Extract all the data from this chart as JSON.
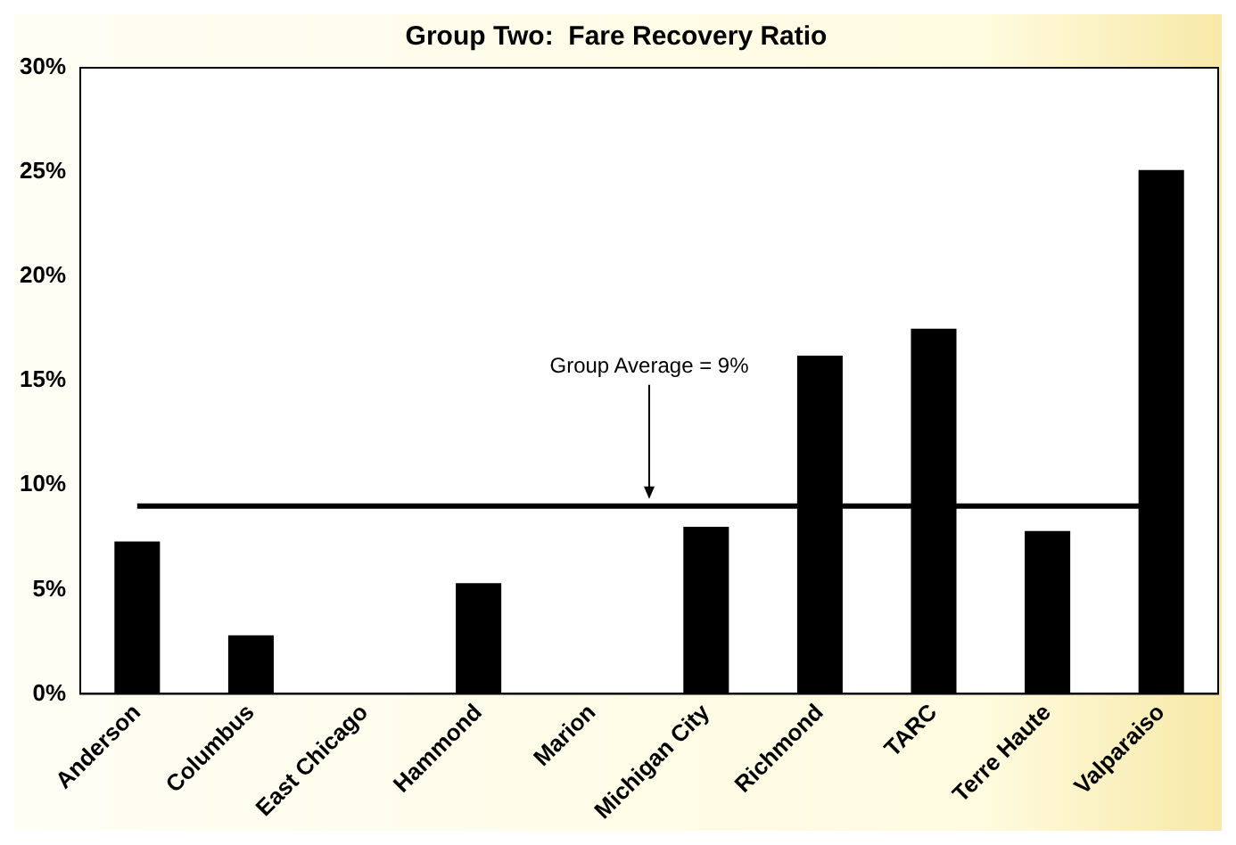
{
  "chart_data": {
    "type": "bar",
    "title": "Group Two:  Fare Recovery Ratio",
    "categories": [
      "Anderson",
      "Columbus",
      "East Chicago",
      "Hammond",
      "Marion",
      "Michigan City",
      "Richmond",
      "TARC",
      "Terre Haute",
      "Valparaiso"
    ],
    "values": [
      7.3,
      2.8,
      0,
      5.3,
      0,
      8.0,
      16.2,
      17.5,
      7.8,
      25.1
    ],
    "color": "#000000",
    "ylim": [
      0,
      30
    ],
    "yticks": [
      {
        "value": 0,
        "label": "0%"
      },
      {
        "value": 5,
        "label": "5%"
      },
      {
        "value": 10,
        "label": "10%"
      },
      {
        "value": 15,
        "label": "15%"
      },
      {
        "value": 20,
        "label": "20%"
      },
      {
        "value": 25,
        "label": "25%"
      },
      {
        "value": 30,
        "label": "30%"
      }
    ],
    "ref_lines": [
      {
        "axis": "y",
        "value": 9,
        "label": "Group Average = 9%",
        "color": "#000000"
      }
    ],
    "grid": false,
    "legend": false
  }
}
